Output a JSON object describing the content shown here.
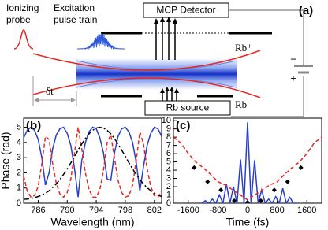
{
  "diagram": {
    "panel_label": "(a)",
    "probe_label": [
      "Ionizing",
      "probe"
    ],
    "excitation_label": [
      "Excitation",
      "pulse train"
    ],
    "detector": "MCP Detector",
    "ion": "Rb⁺",
    "atom": "Rb",
    "source": "Rb source",
    "delay": "δt",
    "minus": "−",
    "plus": "+"
  },
  "chart_data": [
    {
      "type": "line",
      "title": "(b)",
      "x_label": "Wavelength (nm)",
      "y_label": "Phase (rad)",
      "xlim": [
        784,
        803
      ],
      "xticks": [
        786,
        790,
        794,
        798,
        802
      ],
      "ylim": [
        0,
        5.6
      ],
      "yticks": [
        0,
        1,
        2,
        3,
        4,
        5
      ],
      "x": [
        784,
        784.5,
        785,
        785.5,
        786,
        786.5,
        787,
        787.5,
        788,
        788.5,
        789,
        789.5,
        790,
        790.5,
        791,
        791.5,
        792,
        792.5,
        793,
        793.5,
        794,
        794.5,
        795,
        795.5,
        796,
        796.5,
        797,
        797.5,
        798,
        798.5,
        799,
        799.5,
        800,
        800.5,
        801,
        801.5,
        802,
        802.5,
        803
      ],
      "series": [
        {
          "color": "#2a3fc8",
          "style": "solid",
          "values": [
            4.3,
            4.8,
            5.0,
            4.8,
            4.2,
            3.0,
            1.2,
            2.0,
            3.6,
            4.5,
            4.9,
            5.0,
            4.6,
            3.8,
            2.3,
            0.4,
            2.8,
            4.0,
            4.7,
            5.0,
            4.9,
            4.3,
            3.3,
            1.6,
            1.5,
            3.3,
            4.4,
            4.9,
            5.0,
            4.7,
            4.0,
            2.7,
            0.8,
            2.4,
            3.8,
            4.6,
            5.0,
            4.9,
            4.4
          ]
        },
        {
          "color": "#e8281e",
          "style": "dashed",
          "values": [
            1.8,
            0.8,
            0.4,
            0.5,
            1.1,
            2.6,
            4.4,
            4.2,
            2.6,
            1.3,
            0.6,
            0.4,
            0.7,
            1.6,
            3.3,
            5.0,
            3.6,
            2.0,
            0.9,
            0.4,
            0.4,
            0.9,
            2.2,
            4.0,
            4.5,
            3.0,
            1.5,
            0.7,
            0.4,
            0.5,
            1.2,
            2.8,
            4.7,
            3.9,
            2.3,
            1.1,
            0.5,
            0.4,
            0.8
          ]
        },
        {
          "color": "#000000",
          "style": "dashdot",
          "values": [
            0.25,
            0.27,
            0.31,
            0.36,
            0.44,
            0.53,
            0.66,
            0.82,
            1.03,
            1.27,
            1.56,
            1.9,
            2.26,
            2.66,
            3.08,
            3.5,
            3.9,
            4.26,
            4.57,
            4.8,
            4.95,
            5.0,
            4.95,
            4.8,
            4.57,
            4.26,
            3.9,
            3.5,
            3.08,
            2.66,
            2.26,
            1.9,
            1.56,
            1.27,
            1.03,
            0.82,
            0.66,
            0.53,
            0.44
          ]
        }
      ]
    },
    {
      "type": "line",
      "title": "(c)",
      "x_label": "Time (fs)",
      "xlim": [
        -2000,
        2000
      ],
      "xticks": [
        -1600,
        -800,
        0,
        800,
        1600
      ],
      "ylim": [
        0,
        10.3
      ],
      "yticks": [
        0,
        1,
        2,
        3,
        4,
        5,
        6,
        7,
        8,
        9,
        10
      ],
      "series": [
        {
          "color": "#2a3fc8",
          "style": "solid",
          "x": [
            -1330,
            -1235,
            -1140,
            -1045,
            -950,
            -855,
            -760,
            -665,
            -570,
            -475,
            -380,
            -285,
            -190,
            -95,
            0,
            95,
            190,
            285,
            380,
            475,
            570,
            665,
            760,
            855,
            950,
            1045,
            1140,
            1235,
            1330
          ],
          "values": [
            0,
            0,
            0.3,
            0,
            0.5,
            0,
            1.0,
            0,
            2.3,
            0,
            2.0,
            0,
            5.3,
            0,
            9.8,
            0,
            5.2,
            0,
            1.6,
            0,
            0.5,
            0,
            0.8,
            0,
            1.8,
            0,
            0.7,
            0,
            0
          ]
        },
        {
          "color": "#e8281e",
          "style": "dashed",
          "x": [
            -2000,
            -1800,
            -1600,
            -1400,
            -1200,
            -1000,
            -800,
            -600,
            -400,
            -200,
            0,
            200,
            400,
            600,
            800,
            1000,
            1200,
            1400,
            1600,
            1800,
            2000
          ],
          "values": [
            8.0,
            7.3,
            6.0,
            5.0,
            4.3,
            3.5,
            2.6,
            2.2,
            1.6,
            1.0,
            0.4,
            1.0,
            1.6,
            2.2,
            2.6,
            3.5,
            4.3,
            5.0,
            6.0,
            7.3,
            8.0
          ]
        },
        {
          "color": "#000000",
          "style": "diamonds",
          "x": [
            -1440,
            -1080,
            -720,
            -360,
            0,
            360,
            720,
            1080,
            1440
          ],
          "values": [
            4.3,
            2.6,
            1.6,
            0.3,
            0.1,
            0.3,
            1.6,
            2.6,
            4.3
          ]
        }
      ]
    }
  ]
}
